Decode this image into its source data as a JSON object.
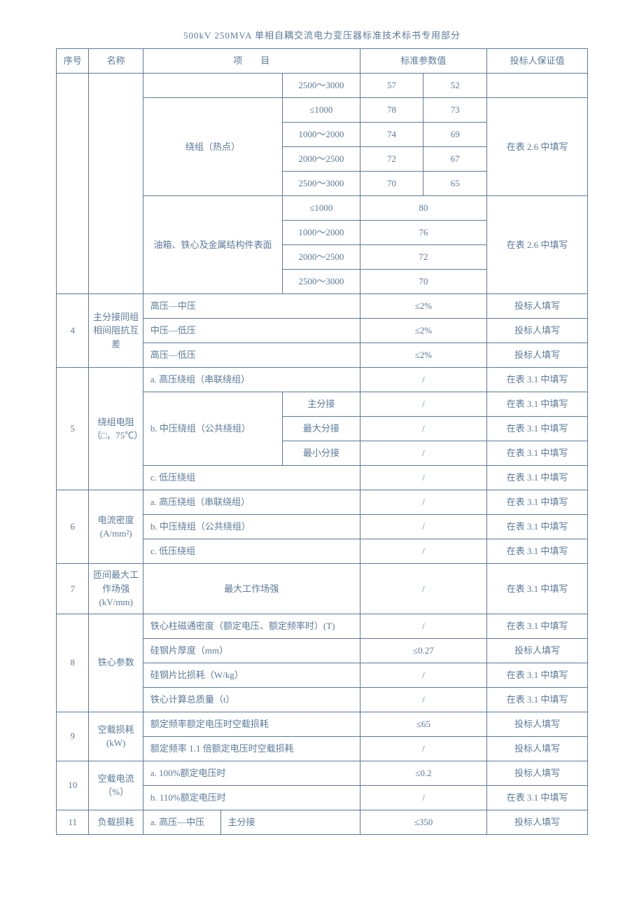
{
  "title": "500kV 250MVA 单相自耦交流电力变压器标准技术标书专用部分",
  "headers": {
    "idx": "序号",
    "name": "名称",
    "item": "项　　目",
    "std": "标准参数值",
    "bid": "投标人保证值"
  },
  "block3a": {
    "range": "2500～3000",
    "v1": "57",
    "v2": "52"
  },
  "block3b": {
    "label": "绕组（热点）",
    "rows": [
      {
        "range": "≤1000",
        "v1": "78",
        "v2": "73"
      },
      {
        "range": "1000～2000",
        "v1": "74",
        "v2": "69"
      },
      {
        "range": "2000～2500",
        "v1": "72",
        "v2": "67"
      },
      {
        "range": "2500～3000",
        "v1": "70",
        "v2": "65"
      }
    ],
    "bid": "在表 2.6 中填写"
  },
  "block3c": {
    "label": "油箱、铁心及金属结构件表面",
    "rows": [
      {
        "range": "≤1000",
        "v": "80"
      },
      {
        "range": "1000～2000",
        "v": "76"
      },
      {
        "range": "2000～2500",
        "v": "72"
      },
      {
        "range": "2500～3000",
        "v": "70"
      }
    ],
    "bid": "在表 2.6 中填写"
  },
  "row4": {
    "idx": "4",
    "name": "主分接同组相间阻抗互差",
    "items": [
      "高压—中压",
      "中压—低压",
      "高压—低压"
    ],
    "std": "≤2%",
    "bid": "投标人填写"
  },
  "row5": {
    "idx": "5",
    "name": "绕组电阻（□，75℃）",
    "a": "a. 高压绕组（串联绕组）",
    "b": "b. 中压绕组（公共绕组）",
    "b_sub": [
      "主分接",
      "最大分接",
      "最小分接"
    ],
    "c": "c. 低压绕组",
    "std": "/",
    "bid": "在表 3.1 中填写"
  },
  "row6": {
    "idx": "6",
    "name": "电流密度 (A/mm²)",
    "items": [
      "a. 高压绕组（串联绕组）",
      "b. 中压绕组（公共绕组）",
      "c. 低压绕组"
    ],
    "std": "/",
    "bid": "在表 3.1 中填写"
  },
  "row7": {
    "idx": "7",
    "name": "匝间最大工作场强 (kV/mm)",
    "item": "最大工作场强",
    "std": "/",
    "bid": "在表 3.1 中填写"
  },
  "row8": {
    "idx": "8",
    "name": "铁心参数",
    "items": [
      {
        "label": "铁心柱磁通密度（额定电压、额定频率时）(T)",
        "std": "/",
        "bid": "在表 3.1 中填写"
      },
      {
        "label": "硅钢片厚度（mm）",
        "std": "≤0.27",
        "bid": "投标人填写"
      },
      {
        "label": "硅钢片比损耗（W/kg）",
        "std": "/",
        "bid": "在表 3.1 中填写"
      },
      {
        "label": "铁心计算总质量（t）",
        "std": "/",
        "bid": "在表 3.1 中填写"
      }
    ]
  },
  "row9": {
    "idx": "9",
    "name": "空载损耗 (kW)",
    "items": [
      {
        "label": "额定频率额定电压时空载损耗",
        "std": "≤65",
        "bid": "投标人填写"
      },
      {
        "label": "额定频率 1.1 倍额定电压时空载损耗",
        "std": "/",
        "bid": "投标人填写"
      }
    ]
  },
  "row10": {
    "idx": "10",
    "name": "空载电流（%）",
    "items": [
      {
        "label": "a. 100%额定电压时",
        "std": "≤0.2",
        "bid": "投标人填写"
      },
      {
        "label": "b. 110%额定电压时",
        "std": "/",
        "bid": "在表 3.1 中填写"
      }
    ]
  },
  "row11": {
    "idx": "11",
    "name": "负载损耗",
    "p1": "a. 高压—中压",
    "p2": "主分接",
    "std": "≤350",
    "bid": "投标人填写"
  }
}
